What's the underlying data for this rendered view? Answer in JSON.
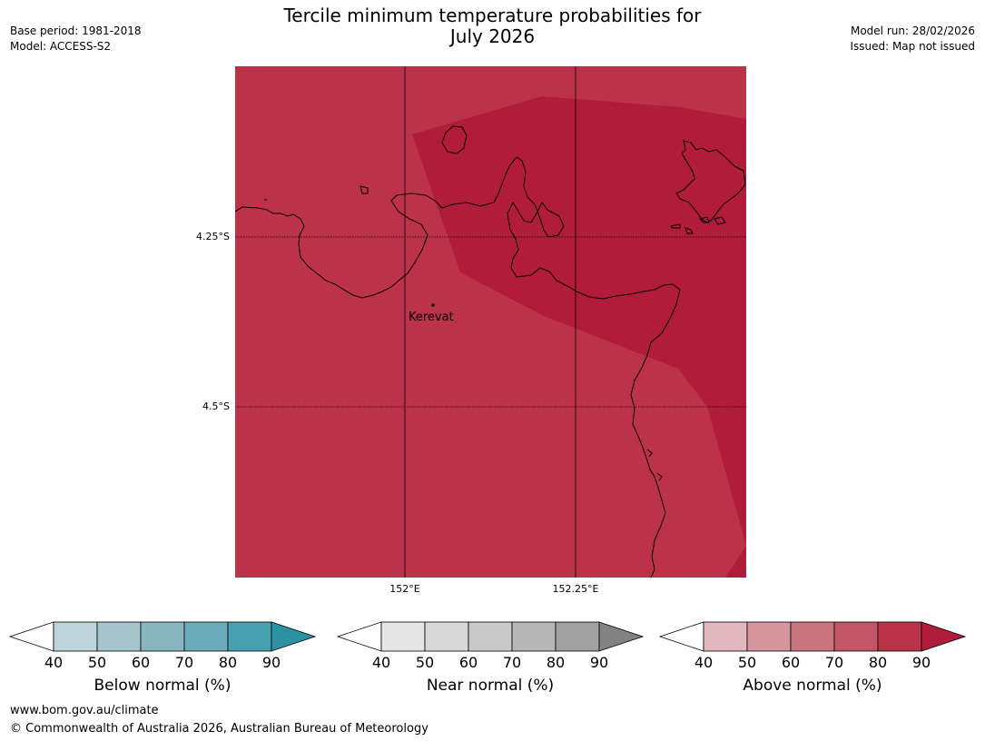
{
  "title_line1": "Tercile minimum temperature probabilities for",
  "title_line2": "July 2026",
  "meta_left": [
    "Base period: 1981-2018",
    "Model: ACCESS-S2"
  ],
  "meta_right": [
    "Model run: 28/02/2026",
    "Issued: Map not issued"
  ],
  "map": {
    "lat_labels": [
      "4.25°S",
      "4.5°S"
    ],
    "lon_labels": [
      "152°E",
      "152.25°E"
    ],
    "place": "Kerevat",
    "colors": {
      "base": "#bc3349",
      "high": "#b01c39",
      "coast": "#000000"
    }
  },
  "colorbars": [
    {
      "name": "below",
      "title": "Below normal (%)",
      "ticks": [
        "40",
        "50",
        "60",
        "70",
        "80",
        "90"
      ],
      "colors": [
        "#ffffff",
        "#bdd4da",
        "#a6c5cb",
        "#89b6c1",
        "#6aacba",
        "#46a0af",
        "#2c92a3"
      ]
    },
    {
      "name": "near",
      "title": "Near normal (%)",
      "ticks": [
        "40",
        "50",
        "60",
        "70",
        "80",
        "90"
      ],
      "colors": [
        "#ffffff",
        "#e6e6e6",
        "#d8d8d8",
        "#c9c9c9",
        "#b6b6b6",
        "#a1a1a1",
        "#828282"
      ]
    },
    {
      "name": "above",
      "title": "Above normal (%)",
      "ticks": [
        "40",
        "50",
        "60",
        "70",
        "80",
        "90"
      ],
      "colors": [
        "#ffffff",
        "#e3b9bf",
        "#d6949c",
        "#ca7480",
        "#c45567",
        "#bc3349",
        "#b01c39"
      ]
    }
  ],
  "footer": {
    "url": "www.bom.gov.au/climate",
    "copyright": "© Commonwealth of Australia 2026, Australian Bureau of Meteorology"
  }
}
